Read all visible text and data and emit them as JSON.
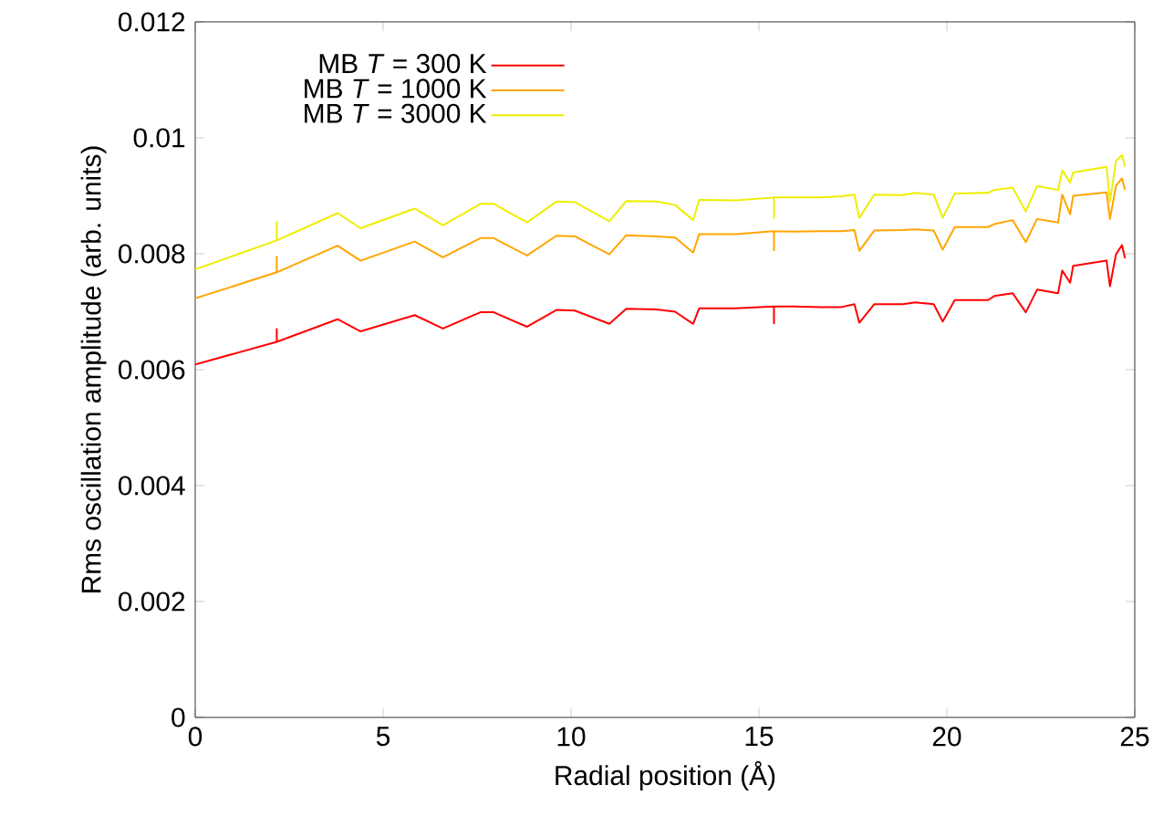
{
  "chart_data": {
    "type": "line",
    "xlabel": "Radial position (Å)",
    "ylabel": "Rms oscillation amplitude (arb. units)",
    "x": [
      0,
      2.17,
      2.17,
      2.17,
      3.79,
      4.4,
      5.84,
      6.59,
      7.59,
      7.94,
      8.83,
      9.61,
      10.1,
      11.02,
      11.47,
      12.28,
      12.77,
      13.25,
      13.41,
      14.38,
      15.4,
      15.4,
      15.4,
      15.92,
      16.65,
      17.2,
      17.54,
      17.67,
      18.07,
      18.83,
      19.16,
      19.65,
      19.89,
      20.21,
      21.1,
      21.26,
      21.75,
      22.1,
      22.4,
      22.96,
      23.07,
      23.28,
      23.36,
      24.25,
      24.34,
      24.5,
      24.66,
      24.74
    ],
    "series": [
      {
        "name": "MB *T* = 300 K",
        "color": "#ff0000",
        "values": [
          0.00609,
          0.00648,
          0.0067,
          0.00648,
          0.00687,
          0.00666,
          0.00694,
          0.00671,
          0.00699,
          0.00699,
          0.00674,
          0.00703,
          0.00702,
          0.00679,
          0.00705,
          0.00704,
          0.007,
          0.00679,
          0.00706,
          0.00706,
          0.00709,
          0.0068,
          0.00709,
          0.00709,
          0.00708,
          0.00708,
          0.00713,
          0.00681,
          0.00713,
          0.00713,
          0.00716,
          0.00713,
          0.00683,
          0.0072,
          0.0072,
          0.00727,
          0.00732,
          0.00699,
          0.00738,
          0.00732,
          0.00771,
          0.0075,
          0.00779,
          0.00788,
          0.00744,
          0.00799,
          0.00815,
          0.00792
        ]
      },
      {
        "name": "MB *T* = 1000 K",
        "color": "#ffa500",
        "values": [
          0.00723,
          0.00768,
          0.00795,
          0.00768,
          0.00814,
          0.00788,
          0.00821,
          0.00794,
          0.00827,
          0.00827,
          0.00797,
          0.00831,
          0.0083,
          0.00799,
          0.00832,
          0.0083,
          0.00828,
          0.00802,
          0.00834,
          0.00834,
          0.00839,
          0.00806,
          0.00839,
          0.00838,
          0.00839,
          0.00839,
          0.00841,
          0.00805,
          0.0084,
          0.00841,
          0.00842,
          0.0084,
          0.00807,
          0.00846,
          0.00846,
          0.00851,
          0.00858,
          0.0082,
          0.0086,
          0.00854,
          0.00902,
          0.00868,
          0.009,
          0.00906,
          0.0086,
          0.00917,
          0.0093,
          0.0091
        ]
      },
      {
        "name": "MB *T* = 3000 K",
        "color": "#eeee00",
        "values": [
          0.00773,
          0.00823,
          0.00855,
          0.00823,
          0.0087,
          0.00844,
          0.00878,
          0.00849,
          0.00886,
          0.00886,
          0.00854,
          0.0089,
          0.00889,
          0.00856,
          0.00891,
          0.0089,
          0.00884,
          0.00858,
          0.00893,
          0.00892,
          0.00897,
          0.00862,
          0.00897,
          0.00897,
          0.00897,
          0.00899,
          0.00902,
          0.00862,
          0.00902,
          0.00901,
          0.00905,
          0.00902,
          0.00862,
          0.00904,
          0.00905,
          0.0091,
          0.00914,
          0.00873,
          0.00917,
          0.0091,
          0.00944,
          0.00923,
          0.0094,
          0.0095,
          0.0089,
          0.0096,
          0.0097,
          0.0095
        ]
      }
    ],
    "xlim": [
      0,
      25
    ],
    "ylim": [
      0,
      0.012
    ],
    "xticks": [
      0,
      5,
      10,
      15,
      20,
      25
    ],
    "yticks": [
      0,
      0.002,
      0.004,
      0.006,
      0.008,
      0.01,
      0.012
    ],
    "legend": "top left"
  }
}
